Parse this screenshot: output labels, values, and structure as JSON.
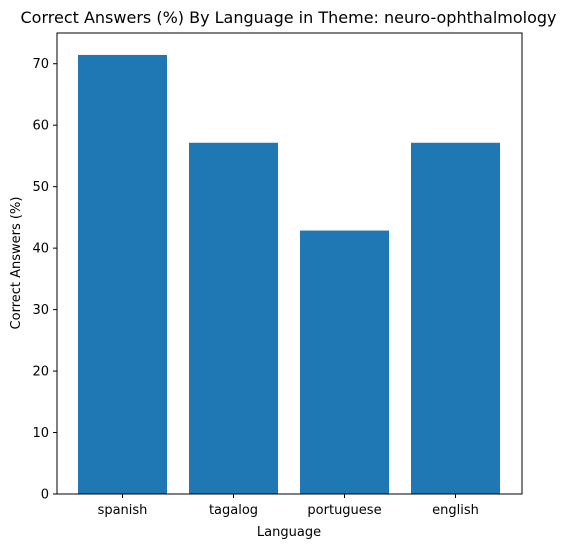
{
  "chart_data": {
    "type": "bar",
    "title": "Correct Answers (%) By Language in Theme: neuro-ophthalmology",
    "xlabel": "Language",
    "ylabel": "Correct Answers (%)",
    "categories": [
      "spanish",
      "tagalog",
      "portuguese",
      "english"
    ],
    "values": [
      71.43,
      57.14,
      42.86,
      57.14
    ],
    "ylim": [
      0,
      75
    ],
    "yticks": [
      "0",
      "10",
      "20",
      "30",
      "40",
      "50",
      "60",
      "70"
    ],
    "grid": false,
    "legend": "none",
    "bar_color": "#1f77b4"
  }
}
